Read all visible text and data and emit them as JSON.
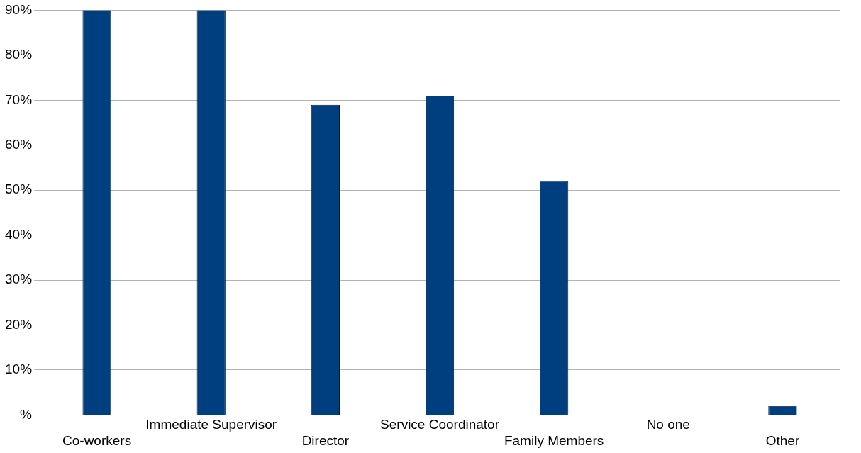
{
  "chart_data": {
    "type": "bar",
    "categories": [
      "Co-workers",
      "Immediate Supervisor",
      "Director",
      "Service Coordinator",
      "Family Members",
      "No one",
      "Other"
    ],
    "values": [
      90,
      90,
      69,
      71,
      52,
      0,
      2
    ],
    "color": "#003f7f",
    "ylim": [
      0,
      90
    ],
    "yticks": [
      {
        "value": 0,
        "label": "%"
      },
      {
        "value": 10,
        "label": "10%"
      },
      {
        "value": 20,
        "label": "20%"
      },
      {
        "value": 30,
        "label": "30%"
      },
      {
        "value": 40,
        "label": "40%"
      },
      {
        "value": 50,
        "label": "50%"
      },
      {
        "value": 60,
        "label": "60%"
      },
      {
        "value": 70,
        "label": "70%"
      },
      {
        "value": 80,
        "label": "80%"
      },
      {
        "value": 90,
        "label": "90%"
      }
    ],
    "grid": "y"
  }
}
